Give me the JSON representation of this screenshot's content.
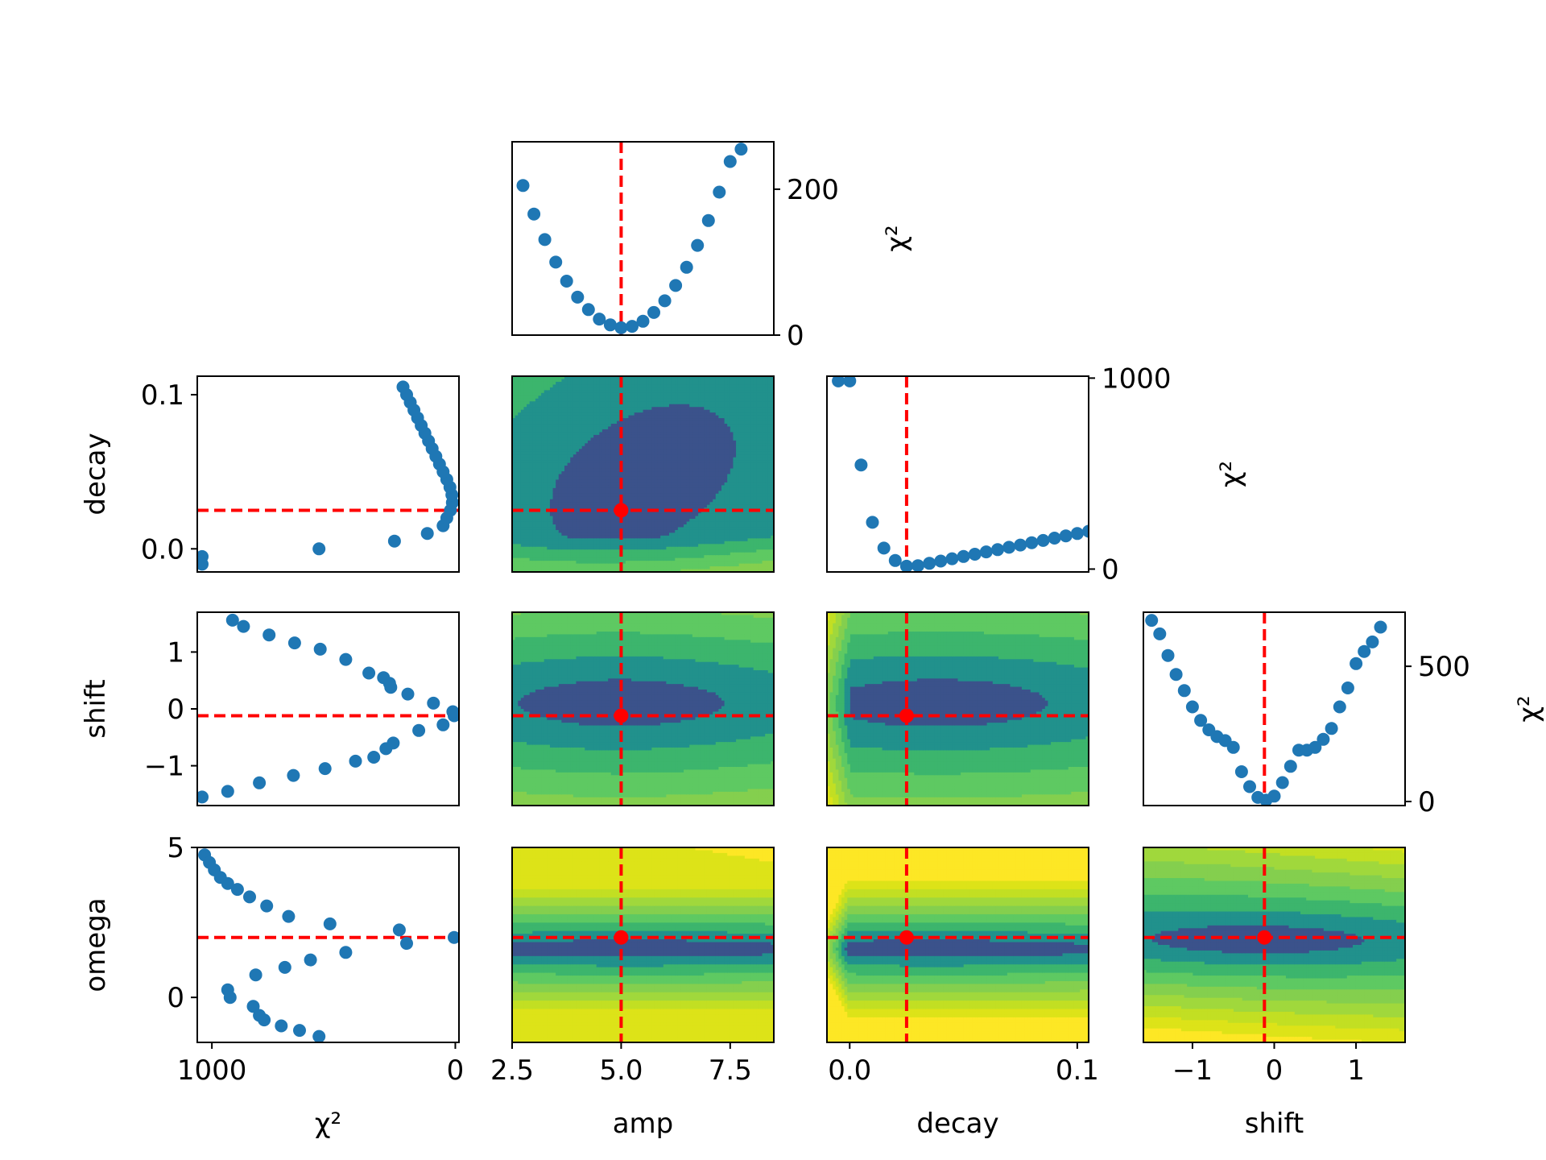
{
  "figure": {
    "colors": {
      "points": "#1f77b4",
      "best_fit_line": "#ff0000",
      "best_fit_marker": "#ff0000",
      "axes_frame": "#000000",
      "contour_levels": [
        "#3b528b",
        "#21918c",
        "#3cb56d",
        "#5ec962",
        "#84cf4e",
        "#a0d83c",
        "#c2df23",
        "#dde318",
        "#fde725",
        "#ffffff"
      ]
    },
    "labels": {
      "chi2": "χ²",
      "amp": "amp",
      "decay": "decay",
      "shift": "shift",
      "omega": "omega"
    }
  },
  "chart_data": [
    {
      "id": "amp-chi2",
      "type": "scatter",
      "xlabel": "",
      "ylabel": "χ²",
      "xlim": [
        2.5,
        8.5
      ],
      "ylim": [
        0,
        265
      ],
      "yticks": [
        {
          "v": 0,
          "label": "0"
        },
        {
          "v": 200,
          "label": "200"
        }
      ],
      "best_x": 5.0,
      "points": [
        [
          2.75,
          205
        ],
        [
          3.0,
          166
        ],
        [
          3.25,
          131
        ],
        [
          3.5,
          100
        ],
        [
          3.75,
          74
        ],
        [
          4.0,
          52
        ],
        [
          4.25,
          35
        ],
        [
          4.5,
          22
        ],
        [
          4.75,
          14
        ],
        [
          5.0,
          10
        ],
        [
          5.25,
          12
        ],
        [
          5.5,
          19
        ],
        [
          5.75,
          31
        ],
        [
          6.0,
          47
        ],
        [
          6.25,
          68
        ],
        [
          6.5,
          93
        ],
        [
          6.75,
          123
        ],
        [
          7.0,
          157
        ],
        [
          7.25,
          196
        ],
        [
          7.5,
          238
        ],
        [
          7.75,
          255
        ]
      ]
    },
    {
      "id": "decay-chi2-left",
      "type": "scatter",
      "xlabel": "",
      "ylabel": "decay",
      "xlim": [
        1060,
        -15
      ],
      "ylim": [
        -0.015,
        0.112
      ],
      "yticks": [
        {
          "v": 0.0,
          "label": "0.0"
        },
        {
          "v": 0.1,
          "label": "0.1"
        }
      ],
      "best_y": 0.025,
      "points": [
        [
          1040,
          -0.005
        ],
        [
          1040,
          -0.01
        ],
        [
          560,
          0.0
        ],
        [
          250,
          0.005
        ],
        [
          115,
          0.01
        ],
        [
          50,
          0.015
        ],
        [
          35,
          0.02
        ],
        [
          20,
          0.025
        ],
        [
          12,
          0.03
        ],
        [
          14,
          0.035
        ],
        [
          22,
          0.04
        ],
        [
          35,
          0.045
        ],
        [
          50,
          0.05
        ],
        [
          65,
          0.055
        ],
        [
          80,
          0.06
        ],
        [
          95,
          0.065
        ],
        [
          110,
          0.07
        ],
        [
          125,
          0.075
        ],
        [
          140,
          0.08
        ],
        [
          155,
          0.085
        ],
        [
          170,
          0.09
        ],
        [
          185,
          0.095
        ],
        [
          200,
          0.1
        ],
        [
          215,
          0.105
        ]
      ]
    },
    {
      "id": "amp-decay",
      "type": "heatmap",
      "xlabel": "",
      "ylabel": "",
      "xlim": [
        2.5,
        8.5
      ],
      "ylim": [
        -0.015,
        0.112
      ],
      "best": [
        5.0,
        0.025
      ]
    },
    {
      "id": "decay-chi2",
      "type": "scatter",
      "xlabel": "",
      "ylabel": "χ²",
      "xlim": [
        -0.01,
        0.105
      ],
      "ylim": [
        -15,
        1010
      ],
      "yticks": [
        {
          "v": 0,
          "label": "0"
        },
        {
          "v": 1000,
          "label": "1000"
        }
      ],
      "best_x": 0.025,
      "points": [
        [
          -0.005,
          985
        ],
        [
          0.0,
          985
        ],
        [
          0.005,
          545
        ],
        [
          0.01,
          245
        ],
        [
          0.015,
          110
        ],
        [
          0.02,
          45
        ],
        [
          0.025,
          15
        ],
        [
          0.03,
          18
        ],
        [
          0.035,
          30
        ],
        [
          0.04,
          42
        ],
        [
          0.045,
          54
        ],
        [
          0.05,
          66
        ],
        [
          0.055,
          78
        ],
        [
          0.06,
          90
        ],
        [
          0.065,
          102
        ],
        [
          0.07,
          114
        ],
        [
          0.075,
          126
        ],
        [
          0.08,
          138
        ],
        [
          0.085,
          150
        ],
        [
          0.09,
          162
        ],
        [
          0.095,
          174
        ],
        [
          0.1,
          186
        ],
        [
          0.105,
          198
        ]
      ]
    },
    {
      "id": "shift-chi2-left",
      "type": "scatter",
      "xlabel": "",
      "ylabel": "shift",
      "xlim": [
        1060,
        -15
      ],
      "ylim": [
        -1.7,
        1.7
      ],
      "yticks": [
        {
          "v": -1,
          "label": "−1"
        },
        {
          "v": 0,
          "label": "0"
        },
        {
          "v": 1,
          "label": "1"
        }
      ],
      "best_y": -0.12,
      "points": [
        [
          1040,
          -1.55
        ],
        [
          935,
          -1.45
        ],
        [
          805,
          -1.3
        ],
        [
          665,
          -1.17
        ],
        [
          535,
          -1.05
        ],
        [
          410,
          -0.92
        ],
        [
          335,
          -0.85
        ],
        [
          285,
          -0.7
        ],
        [
          255,
          -0.6
        ],
        [
          150,
          -0.38
        ],
        [
          50,
          -0.28
        ],
        [
          5,
          -0.12
        ],
        [
          10,
          -0.05
        ],
        [
          90,
          0.1
        ],
        [
          195,
          0.26
        ],
        [
          265,
          0.38
        ],
        [
          270,
          0.45
        ],
        [
          295,
          0.55
        ],
        [
          355,
          0.63
        ],
        [
          450,
          0.87
        ],
        [
          555,
          1.05
        ],
        [
          660,
          1.16
        ],
        [
          765,
          1.3
        ],
        [
          870,
          1.45
        ],
        [
          915,
          1.56
        ]
      ]
    },
    {
      "id": "amp-shift",
      "type": "heatmap",
      "xlabel": "",
      "ylabel": "",
      "xlim": [
        2.5,
        8.5
      ],
      "ylim": [
        -1.7,
        1.7
      ],
      "best": [
        5.0,
        -0.12
      ]
    },
    {
      "id": "decay-shift",
      "type": "heatmap",
      "xlabel": "",
      "ylabel": "",
      "xlim": [
        -0.01,
        0.105
      ],
      "ylim": [
        -1.7,
        1.7
      ],
      "best": [
        0.025,
        -0.12
      ]
    },
    {
      "id": "shift-chi2",
      "type": "scatter",
      "xlabel": "",
      "ylabel": "χ²",
      "xlim": [
        -1.6,
        1.6
      ],
      "ylim": [
        -15,
        700
      ],
      "yticks": [
        {
          "v": 0,
          "label": "0"
        },
        {
          "v": 500,
          "label": "500"
        }
      ],
      "best_x": -0.12,
      "points": [
        [
          -1.5,
          670
        ],
        [
          -1.4,
          620
        ],
        [
          -1.3,
          540
        ],
        [
          -1.2,
          470
        ],
        [
          -1.1,
          410
        ],
        [
          -1.0,
          350
        ],
        [
          -0.9,
          300
        ],
        [
          -0.8,
          265
        ],
        [
          -0.7,
          240
        ],
        [
          -0.6,
          225
        ],
        [
          -0.5,
          200
        ],
        [
          -0.4,
          110
        ],
        [
          -0.3,
          55
        ],
        [
          -0.2,
          15
        ],
        [
          -0.1,
          5
        ],
        [
          0.0,
          20
        ],
        [
          0.1,
          70
        ],
        [
          0.2,
          130
        ],
        [
          0.3,
          190
        ],
        [
          0.4,
          190
        ],
        [
          0.5,
          200
        ],
        [
          0.6,
          230
        ],
        [
          0.7,
          270
        ],
        [
          0.8,
          350
        ],
        [
          0.9,
          420
        ],
        [
          1.0,
          510
        ],
        [
          1.1,
          555
        ],
        [
          1.2,
          590
        ],
        [
          1.3,
          645
        ]
      ]
    },
    {
      "id": "omega-chi2-left",
      "type": "scatter",
      "xlabel": "χ²",
      "ylabel": "omega",
      "xlim": [
        1060,
        -15
      ],
      "ylim": [
        -1.5,
        5.0
      ],
      "xticks": [
        {
          "v": 1000,
          "label": "1000"
        },
        {
          "v": 0,
          "label": "0"
        }
      ],
      "yticks": [
        {
          "v": 0,
          "label": "0"
        },
        {
          "v": 5,
          "label": "5"
        }
      ],
      "best_y": 2.0,
      "points": [
        [
          1030,
          4.75
        ],
        [
          1010,
          4.5
        ],
        [
          990,
          4.25
        ],
        [
          965,
          4.0
        ],
        [
          935,
          3.8
        ],
        [
          895,
          3.6
        ],
        [
          845,
          3.35
        ],
        [
          775,
          3.05
        ],
        [
          685,
          2.7
        ],
        [
          515,
          2.45
        ],
        [
          230,
          2.25
        ],
        [
          200,
          1.8
        ],
        [
          450,
          1.5
        ],
        [
          595,
          1.25
        ],
        [
          700,
          1.0
        ],
        [
          820,
          0.75
        ],
        [
          935,
          0.25
        ],
        [
          925,
          0.0
        ],
        [
          830,
          -0.3
        ],
        [
          805,
          -0.6
        ],
        [
          785,
          -0.75
        ],
        [
          715,
          -0.95
        ],
        [
          640,
          -1.1
        ],
        [
          560,
          -1.3
        ],
        [
          5,
          2.0
        ]
      ]
    },
    {
      "id": "amp-omega",
      "type": "heatmap",
      "xlabel": "amp",
      "ylabel": "",
      "xlim": [
        2.5,
        8.5
      ],
      "ylim": [
        -1.5,
        5.0
      ],
      "xticks": [
        {
          "v": 2.5,
          "label": "2.5"
        },
        {
          "v": 5.0,
          "label": "5.0"
        },
        {
          "v": 7.5,
          "label": "7.5"
        }
      ],
      "best": [
        5.0,
        2.0
      ]
    },
    {
      "id": "decay-omega",
      "type": "heatmap",
      "xlabel": "decay",
      "ylabel": "",
      "xlim": [
        -0.01,
        0.105
      ],
      "ylim": [
        -1.5,
        5.0
      ],
      "xticks": [
        {
          "v": 0.0,
          "label": "0.0"
        },
        {
          "v": 0.1,
          "label": "0.1"
        }
      ],
      "best": [
        0.025,
        2.0
      ]
    },
    {
      "id": "shift-omega",
      "type": "heatmap",
      "xlabel": "shift",
      "ylabel": "",
      "xlim": [
        -1.6,
        1.6
      ],
      "ylim": [
        -1.5,
        5.0
      ],
      "xticks": [
        {
          "v": -1,
          "label": "−1"
        },
        {
          "v": 0,
          "label": "0"
        },
        {
          "v": 1,
          "label": "1"
        }
      ],
      "best": [
        -0.12,
        2.0
      ]
    }
  ]
}
